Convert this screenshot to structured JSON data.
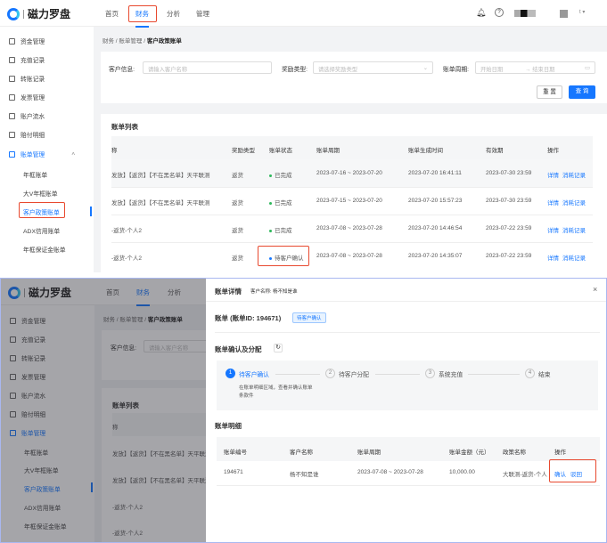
{
  "app": {
    "logo_text": "磁力罗盘",
    "nav": [
      "首页",
      "财务",
      "分析",
      "管理"
    ],
    "active_nav": "财务"
  },
  "sidebar": {
    "items": [
      "资金管理",
      "充值记录",
      "转账记录",
      "发票管理",
      "账户流水",
      "赔付明细",
      "账单管理"
    ],
    "sub_items": [
      "年框账单",
      "大V年框账单",
      "客户政策账单",
      "ADX信用账单",
      "年框保证金账单"
    ],
    "selected": "客户政策账单"
  },
  "breadcrumb": [
    "财务",
    "账单管理",
    "客户政策账单"
  ],
  "filters": {
    "customer_label": "客户信息:",
    "customer_placeholder": "请输入客户名称",
    "reward_label": "奖励类型:",
    "reward_placeholder": "请选择奖励类型",
    "period_label": "账单周期:",
    "start_placeholder": "开始日期",
    "end_placeholder": "结束日期",
    "reset": "重 置",
    "query": "查 询"
  },
  "list": {
    "title": "账单列表",
    "columns": [
      "称",
      "奖励类型",
      "账单状态",
      "账单周期",
      "账单生成时间",
      "有效期",
      "操作"
    ],
    "rows": [
      {
        "name": "发放】【返货】【不在黑名单】天平联测",
        "type": "返货",
        "status": "已完成",
        "period": "2023-07-16 ~ 2023-07-20",
        "created": "2023-07-20 16:41:11",
        "expiry": "2023-07-30 23:59",
        "actions": [
          "详情",
          "消耗记录"
        ]
      },
      {
        "name": "发放】【返货】【不在黑名单】天平联测",
        "type": "返货",
        "status": "已完成",
        "period": "2023-07-15 ~ 2023-07-20",
        "created": "2023-07-20 15:57:23",
        "expiry": "2023-07-30 23:59",
        "actions": [
          "详情",
          "消耗记录"
        ]
      },
      {
        "name": "-返货-个人2",
        "type": "返货",
        "status": "已完成",
        "period": "2023-07-08 ~ 2023-07-28",
        "created": "2023-07-20 14:46:54",
        "expiry": "2023-07-22 23:59",
        "actions": [
          "详情",
          "消耗记录"
        ]
      },
      {
        "name": "-返货-个人2",
        "type": "返货",
        "status": "待客户确认",
        "period": "2023-07-08 ~ 2023-07-28",
        "created": "2023-07-20 14:35:07",
        "expiry": "2023-07-22 23:59",
        "actions": [
          "详情",
          "消耗记录"
        ]
      }
    ]
  },
  "status_colors": {
    "已完成": "#2eb85c",
    "待客户确认": "#1677ff"
  },
  "accent": "#1677ff",
  "drawer": {
    "title": "账单详情",
    "customer": "客户名称: 杨不知是谁",
    "bill_heading": "账单 (账单ID: 194671)",
    "badge": "待客户确认",
    "section1": "账单确认及分配",
    "steps": [
      {
        "n": "1",
        "label": "待客户确认",
        "desc": "在账单明细区域，查看并确认账单",
        "desc2": "条款件"
      },
      {
        "n": "2",
        "label": "待客户分配"
      },
      {
        "n": "3",
        "label": "系统充值"
      },
      {
        "n": "4",
        "label": "结束"
      }
    ],
    "section2": "账单明细",
    "columns": [
      "账单编号",
      "客户名称",
      "账单周期",
      "账单金额（元）",
      "政策名称",
      "操作"
    ],
    "row": {
      "id": "194671",
      "customer": "杨不知是谁",
      "period": "2023-07-08 ~ 2023-07-28",
      "amount": "10,000.00",
      "policy": "大联测-返货-个人",
      "actions": [
        "确认",
        "驳回"
      ]
    }
  }
}
